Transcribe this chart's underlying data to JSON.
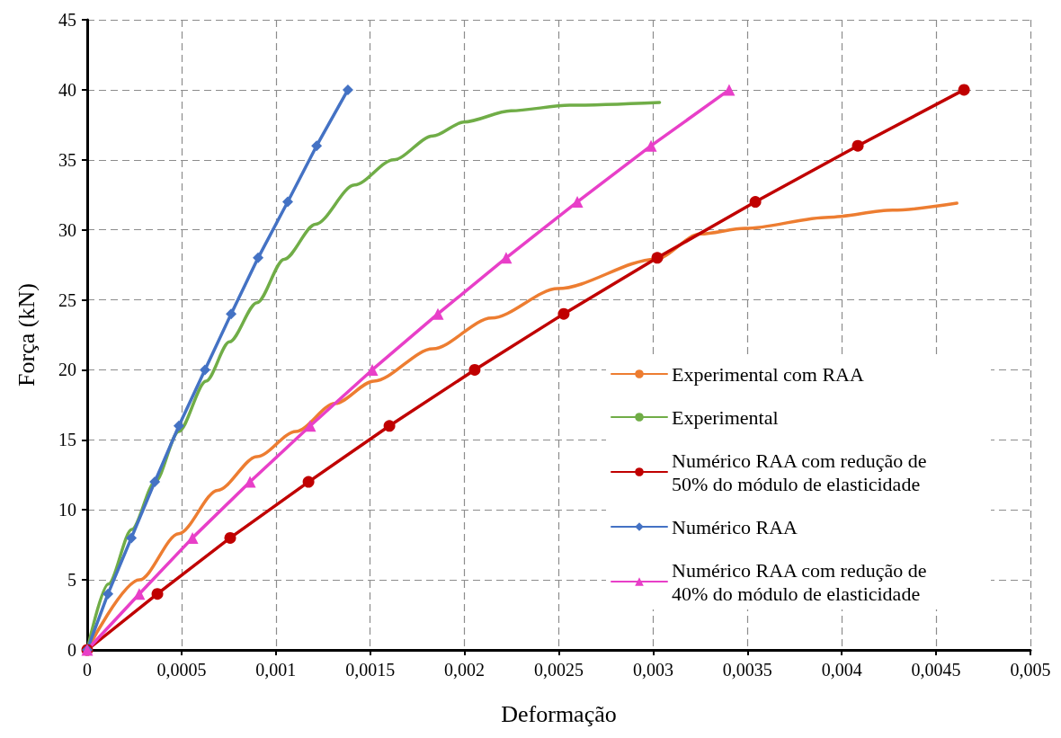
{
  "chart_data": {
    "type": "line",
    "xlabel": "Deformação",
    "ylabel": "Força (kN)",
    "xlim": [
      0,
      0.005
    ],
    "xticks": [
      0,
      {
        "value": 0.0005,
        "label": "0,0005"
      },
      {
        "value": 0.001,
        "label": "0,001"
      },
      {
        "value": 0.0015,
        "label": "0,0015"
      },
      {
        "value": 0.002,
        "label": "0,002"
      },
      {
        "value": 0.0025,
        "label": "0,0025"
      },
      {
        "value": 0.003,
        "label": "0,003"
      },
      {
        "value": 0.0035,
        "label": "0,0035"
      },
      {
        "value": 0.004,
        "label": "0,004"
      },
      {
        "value": 0.0045,
        "label": "0,0045"
      },
      {
        "value": 0.005,
        "label": "0,005"
      }
    ],
    "ylim": [
      0,
      45
    ],
    "yticks": [
      0,
      5,
      10,
      15,
      20,
      25,
      30,
      35,
      40,
      45
    ],
    "grid": true,
    "legend": "right",
    "line_style": "solid",
    "series": [
      {
        "name": "Experimental com RAA",
        "color": "#ed7d31",
        "marker": "none",
        "x": [
          0,
          0.000277,
          0.000485,
          0.000692,
          0.0009,
          0.001106,
          0.001314,
          0.00152,
          0.001832,
          0.002143,
          0.002495,
          0.003012,
          0.003249,
          0.003487,
          0.00393,
          0.00427,
          0.00461
        ],
        "values": [
          0,
          5.0,
          8.3,
          11.4,
          13.8,
          15.6,
          17.6,
          19.2,
          21.5,
          23.7,
          25.8,
          27.9,
          29.7,
          30.1,
          30.9,
          31.4,
          31.9
        ]
      },
      {
        "name": "Experimental",
        "color": "#70ad47",
        "marker": "none",
        "x": [
          0,
          0.000112,
          0.000236,
          0.00036,
          0.000485,
          0.00063,
          0.000754,
          0.0009,
          0.001044,
          0.00121,
          0.001417,
          0.001624,
          0.001832,
          0.001997,
          0.002246,
          0.002557,
          0.003034
        ],
        "values": [
          0,
          4.7,
          8.6,
          12.0,
          15.6,
          19.2,
          22.0,
          24.8,
          27.9,
          30.4,
          33.2,
          35.0,
          36.7,
          37.7,
          38.5,
          38.9,
          39.1
        ]
      },
      {
        "name": "Numérico RAA com redução de 50% do módulo de elasticidade",
        "color": "#c00000",
        "marker": "circle",
        "x": [
          0,
          0.000372,
          0.000758,
          0.001173,
          0.001602,
          0.002054,
          0.002526,
          0.003022,
          0.003542,
          0.004085,
          0.004648
        ],
        "values": [
          0,
          4,
          8,
          12,
          16,
          20,
          24,
          28,
          32,
          36,
          40
        ]
      },
      {
        "name": "Numérico RAA",
        "color": "#4472c4",
        "marker": "diamond",
        "x": [
          0,
          0.00011,
          0.000234,
          0.000358,
          0.000486,
          0.000624,
          0.000763,
          0.000906,
          0.001063,
          0.001216,
          0.001382
        ],
        "values": [
          0,
          4,
          8,
          12,
          16,
          20,
          24,
          28,
          32,
          36,
          40
        ]
      },
      {
        "name": "Numérico RAA com redução de 40% do módulo de elasticidade",
        "color": "#e83fc8",
        "marker": "triangle",
        "x": [
          0,
          0.000276,
          0.000558,
          0.000863,
          0.001182,
          0.001511,
          0.001859,
          0.002221,
          0.002598,
          0.002989,
          0.003403
        ],
        "values": [
          0,
          4,
          8,
          12,
          16,
          20,
          24,
          28,
          32,
          36,
          40
        ]
      }
    ]
  }
}
